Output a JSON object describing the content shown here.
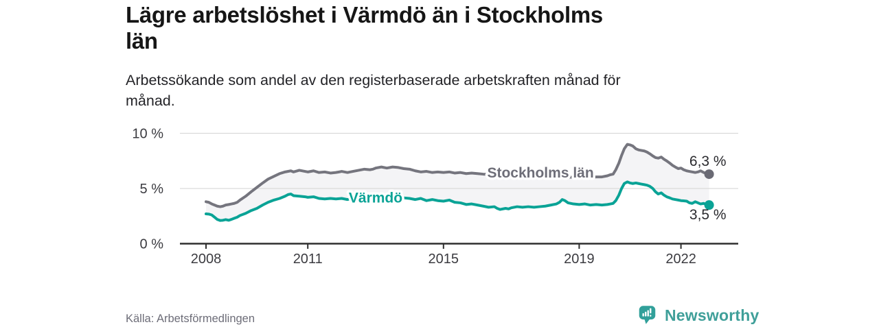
{
  "header": {
    "title_lines": [
      "Lägre arbetslöshet i Värmdö än i Stockholms",
      "län"
    ],
    "subtitle_lines": [
      "Arbetssökande som andel av den registerbaserade arbetskraften månad för",
      "månad."
    ]
  },
  "footer": {
    "source": "Källa: Arbetsförmedlingen",
    "brand": "Newsworthy"
  },
  "colors": {
    "title": "#161616",
    "subtitle": "#232327",
    "source_text": "#6d6d78",
    "brand_teal": "#3f9f99",
    "band_fill": "#f4f4f6",
    "gridline": "#d9d9d9",
    "axis": "#2e2e2e",
    "axis_text": "#3b3b40",
    "end_label_text": "#2a2a2e"
  },
  "chart_data": {
    "type": "line",
    "title": "Lägre arbetslöshet i Värmdö än i Stockholms län",
    "subtitle": "Arbetssökande som andel av den registerbaserade arbetskraften månad för månad.",
    "xlabel": "",
    "ylabel": "",
    "x_axis": {
      "ticks": [
        2008,
        2011,
        2015,
        2019,
        2022
      ],
      "tick_labels": [
        "2008",
        "2011",
        "2015",
        "2019",
        "2022"
      ],
      "range": [
        2007.2,
        2023.7
      ]
    },
    "y_axis": {
      "ticks": [
        0,
        5,
        10
      ],
      "tick_labels": [
        "0 %",
        "5 %",
        "10 %"
      ],
      "gridlines": [
        5,
        10
      ],
      "range": [
        0,
        10.9
      ]
    },
    "legend_position": "inline-labels",
    "grid": "horizontal-only",
    "series": [
      {
        "name": "Stockholms län",
        "color": "#75757e",
        "label_color": "#6e6e78",
        "dot_color": "#6a6a74",
        "end_label": "6,3 %",
        "end_value": 6.3,
        "label_at": [
          2017.86,
          6.4
        ],
        "points": [
          [
            2008.0,
            3.8
          ],
          [
            2008.08,
            3.75
          ],
          [
            2008.17,
            3.6
          ],
          [
            2008.25,
            3.5
          ],
          [
            2008.33,
            3.4
          ],
          [
            2008.42,
            3.35
          ],
          [
            2008.5,
            3.4
          ],
          [
            2008.58,
            3.5
          ],
          [
            2008.67,
            3.55
          ],
          [
            2008.75,
            3.6
          ],
          [
            2008.83,
            3.65
          ],
          [
            2008.92,
            3.75
          ],
          [
            2009.0,
            3.95
          ],
          [
            2009.17,
            4.3
          ],
          [
            2009.33,
            4.7
          ],
          [
            2009.5,
            5.1
          ],
          [
            2009.67,
            5.5
          ],
          [
            2009.83,
            5.85
          ],
          [
            2010.0,
            6.1
          ],
          [
            2010.17,
            6.35
          ],
          [
            2010.33,
            6.5
          ],
          [
            2010.5,
            6.6
          ],
          [
            2010.58,
            6.5
          ],
          [
            2010.75,
            6.65
          ],
          [
            2010.92,
            6.55
          ],
          [
            2011.0,
            6.5
          ],
          [
            2011.17,
            6.6
          ],
          [
            2011.33,
            6.45
          ],
          [
            2011.5,
            6.5
          ],
          [
            2011.67,
            6.4
          ],
          [
            2011.83,
            6.45
          ],
          [
            2011.92,
            6.5
          ],
          [
            2012.0,
            6.55
          ],
          [
            2012.17,
            6.45
          ],
          [
            2012.33,
            6.55
          ],
          [
            2012.5,
            6.65
          ],
          [
            2012.67,
            6.75
          ],
          [
            2012.83,
            6.7
          ],
          [
            2012.92,
            6.75
          ],
          [
            2013.0,
            6.85
          ],
          [
            2013.17,
            6.95
          ],
          [
            2013.33,
            6.85
          ],
          [
            2013.5,
            6.95
          ],
          [
            2013.67,
            6.9
          ],
          [
            2013.83,
            6.8
          ],
          [
            2014.0,
            6.75
          ],
          [
            2014.17,
            6.6
          ],
          [
            2014.33,
            6.5
          ],
          [
            2014.5,
            6.55
          ],
          [
            2014.67,
            6.45
          ],
          [
            2014.83,
            6.5
          ],
          [
            2015.0,
            6.45
          ],
          [
            2015.17,
            6.5
          ],
          [
            2015.33,
            6.4
          ],
          [
            2015.5,
            6.45
          ],
          [
            2015.67,
            6.35
          ],
          [
            2015.83,
            6.4
          ],
          [
            2016.0,
            6.35
          ],
          [
            2016.17,
            6.3
          ],
          [
            2016.5,
            6.25
          ],
          [
            2017.0,
            6.2
          ],
          [
            2017.5,
            6.15
          ],
          [
            2018.0,
            6.1
          ],
          [
            2018.5,
            6.05
          ],
          [
            2019.0,
            6.0
          ],
          [
            2019.33,
            6.0
          ],
          [
            2019.5,
            6.05
          ],
          [
            2019.67,
            6.05
          ],
          [
            2019.83,
            6.15
          ],
          [
            2019.92,
            6.25
          ],
          [
            2020.0,
            6.3
          ],
          [
            2020.08,
            6.7
          ],
          [
            2020.17,
            7.3
          ],
          [
            2020.25,
            8.0
          ],
          [
            2020.33,
            8.6
          ],
          [
            2020.42,
            9.0
          ],
          [
            2020.5,
            8.95
          ],
          [
            2020.58,
            8.85
          ],
          [
            2020.67,
            8.6
          ],
          [
            2020.75,
            8.5
          ],
          [
            2020.83,
            8.45
          ],
          [
            2020.92,
            8.4
          ],
          [
            2021.0,
            8.3
          ],
          [
            2021.08,
            8.15
          ],
          [
            2021.17,
            7.95
          ],
          [
            2021.25,
            7.8
          ],
          [
            2021.33,
            7.75
          ],
          [
            2021.42,
            7.85
          ],
          [
            2021.5,
            7.65
          ],
          [
            2021.58,
            7.5
          ],
          [
            2021.67,
            7.3
          ],
          [
            2021.75,
            7.1
          ],
          [
            2021.83,
            6.95
          ],
          [
            2021.92,
            6.8
          ],
          [
            2022.0,
            6.85
          ],
          [
            2022.08,
            6.7
          ],
          [
            2022.17,
            6.6
          ],
          [
            2022.25,
            6.55
          ],
          [
            2022.33,
            6.5
          ],
          [
            2022.42,
            6.45
          ],
          [
            2022.5,
            6.5
          ],
          [
            2022.58,
            6.6
          ],
          [
            2022.67,
            6.45
          ],
          [
            2022.75,
            6.35
          ],
          [
            2022.83,
            6.3
          ]
        ]
      },
      {
        "name": "Värmdö",
        "color": "#0aa396",
        "label_color": "#0aa396",
        "dot_color": "#0aa396",
        "end_label": "3,5 %",
        "end_value": 3.5,
        "label_at": [
          2013.0,
          4.13
        ],
        "points": [
          [
            2008.0,
            2.7
          ],
          [
            2008.08,
            2.68
          ],
          [
            2008.17,
            2.6
          ],
          [
            2008.25,
            2.4
          ],
          [
            2008.33,
            2.2
          ],
          [
            2008.42,
            2.1
          ],
          [
            2008.5,
            2.12
          ],
          [
            2008.58,
            2.18
          ],
          [
            2008.67,
            2.12
          ],
          [
            2008.75,
            2.2
          ],
          [
            2008.83,
            2.3
          ],
          [
            2008.92,
            2.4
          ],
          [
            2009.0,
            2.55
          ],
          [
            2009.17,
            2.75
          ],
          [
            2009.33,
            3.0
          ],
          [
            2009.5,
            3.2
          ],
          [
            2009.67,
            3.5
          ],
          [
            2009.83,
            3.75
          ],
          [
            2010.0,
            3.95
          ],
          [
            2010.17,
            4.1
          ],
          [
            2010.33,
            4.3
          ],
          [
            2010.42,
            4.45
          ],
          [
            2010.5,
            4.5
          ],
          [
            2010.58,
            4.35
          ],
          [
            2010.75,
            4.3
          ],
          [
            2010.92,
            4.25
          ],
          [
            2011.0,
            4.2
          ],
          [
            2011.17,
            4.25
          ],
          [
            2011.33,
            4.1
          ],
          [
            2011.5,
            4.05
          ],
          [
            2011.67,
            4.1
          ],
          [
            2011.83,
            4.05
          ],
          [
            2012.0,
            4.1
          ],
          [
            2012.17,
            4.0
          ],
          [
            2012.33,
            4.1
          ],
          [
            2012.5,
            4.05
          ],
          [
            2012.67,
            4.1
          ],
          [
            2012.83,
            4.15
          ],
          [
            2013.0,
            4.2
          ],
          [
            2013.17,
            4.25
          ],
          [
            2013.33,
            4.15
          ],
          [
            2013.5,
            4.2
          ],
          [
            2013.67,
            4.1
          ],
          [
            2013.83,
            4.15
          ],
          [
            2014.0,
            4.1
          ],
          [
            2014.17,
            4.0
          ],
          [
            2014.33,
            4.1
          ],
          [
            2014.5,
            3.9
          ],
          [
            2014.67,
            4.0
          ],
          [
            2014.83,
            3.9
          ],
          [
            2015.0,
            3.85
          ],
          [
            2015.17,
            3.95
          ],
          [
            2015.33,
            3.75
          ],
          [
            2015.5,
            3.7
          ],
          [
            2015.67,
            3.55
          ],
          [
            2015.83,
            3.6
          ],
          [
            2016.0,
            3.5
          ],
          [
            2016.17,
            3.4
          ],
          [
            2016.33,
            3.3
          ],
          [
            2016.5,
            3.35
          ],
          [
            2016.58,
            3.2
          ],
          [
            2016.67,
            3.1
          ],
          [
            2016.83,
            3.2
          ],
          [
            2016.92,
            3.15
          ],
          [
            2017.0,
            3.25
          ],
          [
            2017.17,
            3.35
          ],
          [
            2017.33,
            3.3
          ],
          [
            2017.5,
            3.35
          ],
          [
            2017.67,
            3.3
          ],
          [
            2017.83,
            3.35
          ],
          [
            2018.0,
            3.4
          ],
          [
            2018.17,
            3.5
          ],
          [
            2018.33,
            3.6
          ],
          [
            2018.42,
            3.75
          ],
          [
            2018.5,
            4.0
          ],
          [
            2018.58,
            3.9
          ],
          [
            2018.67,
            3.7
          ],
          [
            2018.83,
            3.6
          ],
          [
            2019.0,
            3.55
          ],
          [
            2019.17,
            3.6
          ],
          [
            2019.33,
            3.5
          ],
          [
            2019.5,
            3.55
          ],
          [
            2019.67,
            3.5
          ],
          [
            2019.83,
            3.55
          ],
          [
            2019.92,
            3.6
          ],
          [
            2020.0,
            3.65
          ],
          [
            2020.08,
            3.9
          ],
          [
            2020.17,
            4.4
          ],
          [
            2020.25,
            5.0
          ],
          [
            2020.33,
            5.45
          ],
          [
            2020.42,
            5.6
          ],
          [
            2020.5,
            5.5
          ],
          [
            2020.58,
            5.45
          ],
          [
            2020.67,
            5.5
          ],
          [
            2020.75,
            5.45
          ],
          [
            2020.83,
            5.4
          ],
          [
            2020.92,
            5.35
          ],
          [
            2021.0,
            5.3
          ],
          [
            2021.08,
            5.2
          ],
          [
            2021.17,
            5.0
          ],
          [
            2021.25,
            4.7
          ],
          [
            2021.33,
            4.5
          ],
          [
            2021.42,
            4.6
          ],
          [
            2021.5,
            4.4
          ],
          [
            2021.58,
            4.25
          ],
          [
            2021.67,
            4.15
          ],
          [
            2021.75,
            4.05
          ],
          [
            2021.83,
            4.0
          ],
          [
            2021.92,
            3.95
          ],
          [
            2022.0,
            3.9
          ],
          [
            2022.08,
            3.88
          ],
          [
            2022.17,
            3.85
          ],
          [
            2022.25,
            3.7
          ],
          [
            2022.33,
            3.65
          ],
          [
            2022.42,
            3.8
          ],
          [
            2022.5,
            3.7
          ],
          [
            2022.58,
            3.6
          ],
          [
            2022.67,
            3.65
          ],
          [
            2022.75,
            3.55
          ],
          [
            2022.83,
            3.5
          ]
        ]
      }
    ]
  }
}
